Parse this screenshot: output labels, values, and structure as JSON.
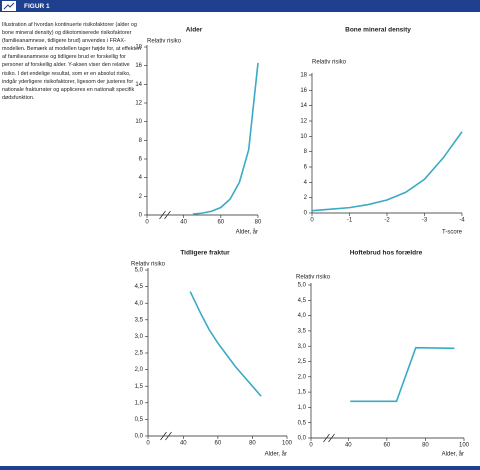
{
  "header": {
    "label": "FIGUR 1"
  },
  "caption": "Illustration af hvordan kontinuerte risikofaktorer (alder og bone mineral density) og dikotomiserede risikofaktorer (familieanamnese, tidligere brud) anvendes i FRAX-modellen. Bemærk at modellen tager højde for, at effekten af familieanamnese og tidligere brud er forskellig for personer af forskellig alder. Y-aksen viser den relative risiko. I det endelige resultat, som er en absolut risiko, indgår yderligere risikofaktorer, ligesom der justeres for nationale frakturrater og appliceres en nationalt specifik dødsfunktion.",
  "chart_data": [
    {
      "type": "line",
      "title": "Alder",
      "y_label": "Relativ risiko",
      "x_label": "Alder, år",
      "color": "#3aaac6",
      "x": [
        45,
        50,
        55,
        60,
        65,
        70,
        75,
        80
      ],
      "values": [
        0.1,
        0.2,
        0.4,
        0.8,
        1.7,
        3.5,
        7,
        16.3
      ],
      "xlim": [
        0,
        80
      ],
      "xbreak": [
        0,
        30
      ],
      "xticks": [
        0,
        40,
        60,
        80
      ],
      "ylim": [
        0,
        18
      ],
      "yticks": [
        0,
        2,
        4,
        6,
        8,
        10,
        12,
        14,
        16,
        18
      ]
    },
    {
      "type": "line",
      "title": "Bone mineral density",
      "y_label": "Relativ risiko",
      "x_label": "T-score",
      "color": "#3aaac6",
      "x": [
        0,
        -0.5,
        -1,
        -1.5,
        -2,
        -2.5,
        -3,
        -3.5,
        -4
      ],
      "values": [
        0.3,
        0.5,
        0.7,
        1.1,
        1.7,
        2.7,
        4.4,
        7.2,
        10.6
      ],
      "xlim": [
        0,
        -4
      ],
      "xticks": [
        0,
        -1,
        -2,
        -3,
        -4
      ],
      "ylim": [
        0,
        18
      ],
      "yticks": [
        0,
        2,
        4,
        6,
        8,
        10,
        12,
        14,
        16,
        18
      ]
    },
    {
      "type": "line",
      "title": "Tidligere fraktur",
      "y_label": "Relativ risiko",
      "x_label": "Alder, år",
      "color": "#3aaac6",
      "x": [
        44,
        50,
        55,
        60,
        65,
        70,
        75,
        80,
        85
      ],
      "values": [
        4.35,
        3.7,
        3.2,
        2.8,
        2.45,
        2.1,
        1.8,
        1.5,
        1.2
      ],
      "xlim": [
        0,
        100
      ],
      "xbreak": [
        0,
        30
      ],
      "xticks": [
        0,
        40,
        60,
        80,
        100
      ],
      "ylim": [
        0,
        5
      ],
      "yticks": [
        {
          "value": 0,
          "label": "0,0"
        },
        {
          "value": 0.5,
          "label": "0,5"
        },
        {
          "value": 1,
          "label": "1,0"
        },
        {
          "value": 1.5,
          "label": "1,5"
        },
        {
          "value": 2,
          "label": "2,0"
        },
        {
          "value": 2.5,
          "label": "2,5"
        },
        {
          "value": 3,
          "label": "3,0"
        },
        {
          "value": 3.5,
          "label": "3,5"
        },
        {
          "value": 4,
          "label": "4,0"
        },
        {
          "value": 4.5,
          "label": "4,5"
        },
        {
          "value": 5,
          "label": "5,0"
        }
      ]
    },
    {
      "type": "line",
      "title": "Hoftebrud hos forældre",
      "y_label": "Relativ risiko",
      "x_label": "Alder, år",
      "color": "#3aaac6",
      "x": [
        41,
        65,
        75,
        95
      ],
      "values": [
        1.2,
        1.2,
        2.95,
        2.93
      ],
      "xlim": [
        0,
        100
      ],
      "xbreak": [
        0,
        30
      ],
      "xticks": [
        0,
        40,
        60,
        80,
        100
      ],
      "ylim": [
        0,
        5
      ],
      "yticks": [
        {
          "value": 0,
          "label": "0,0"
        },
        {
          "value": 0.5,
          "label": "0,5"
        },
        {
          "value": 1,
          "label": "1,0"
        },
        {
          "value": 1.5,
          "label": "1,5"
        },
        {
          "value": 2,
          "label": "2,0"
        },
        {
          "value": 2.5,
          "label": "2,5"
        },
        {
          "value": 3,
          "label": "3,0"
        },
        {
          "value": 3.5,
          "label": "3,5"
        },
        {
          "value": 4,
          "label": "4,0"
        },
        {
          "value": 4.5,
          "label": "4,5"
        },
        {
          "value": 5,
          "label": "5,0"
        }
      ]
    }
  ]
}
